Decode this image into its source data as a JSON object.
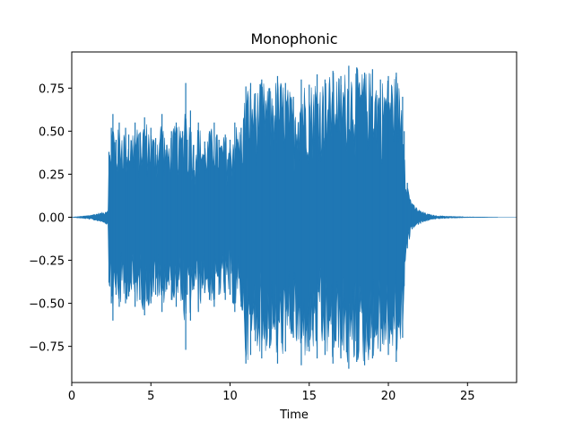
{
  "chart_data": {
    "type": "area",
    "title": "Monophonic",
    "xlabel": "Time",
    "ylabel": "",
    "xlim": [
      0,
      28.1
    ],
    "ylim": [
      -0.96,
      0.96
    ],
    "xticks": [
      0,
      5,
      10,
      15,
      20,
      25
    ],
    "xtick_labels": [
      "0",
      "5",
      "10",
      "15",
      "20",
      "25"
    ],
    "yticks": [
      -0.75,
      -0.5,
      -0.25,
      0.0,
      0.25,
      0.5,
      0.75
    ],
    "ytick_labels": [
      "−0.75",
      "−0.50",
      "−0.25",
      "0.00",
      "0.25",
      "0.50",
      "0.75"
    ],
    "grid": false,
    "legend": "none",
    "series": [
      {
        "color": "#1f77b4",
        "envelope": {
          "x": [
            0,
            0.5,
            1.0,
            1.5,
            2.0,
            2.3,
            2.35,
            2.5,
            2.6,
            2.8,
            3.0,
            3.4,
            3.6,
            4.0,
            4.3,
            4.6,
            5.0,
            5.3,
            5.7,
            6.0,
            6.3,
            6.6,
            7.0,
            7.2,
            7.3,
            7.5,
            7.7,
            8.0,
            8.4,
            8.7,
            9.0,
            9.3,
            9.7,
            10.0,
            10.3,
            10.7,
            11.0,
            11.3,
            11.6,
            12.0,
            12.5,
            13.0,
            13.5,
            14.0,
            14.5,
            15.0,
            15.5,
            16.0,
            16.5,
            17.0,
            17.5,
            18.0,
            18.5,
            19.0,
            19.5,
            20.0,
            20.5,
            20.9,
            21.0,
            21.2,
            21.5,
            22.0,
            22.5,
            23.0,
            24.0,
            25.0,
            26.0,
            27.0,
            28.1
          ],
          "upper": [
            0.0,
            0.005,
            0.01,
            0.02,
            0.03,
            0.05,
            0.38,
            0.52,
            0.6,
            0.45,
            0.55,
            0.52,
            0.48,
            0.55,
            0.49,
            0.58,
            0.52,
            0.46,
            0.6,
            0.42,
            0.5,
            0.55,
            0.5,
            0.78,
            0.45,
            0.62,
            0.42,
            0.55,
            0.44,
            0.5,
            0.55,
            0.45,
            0.48,
            0.45,
            0.55,
            0.52,
            0.76,
            0.78,
            0.72,
            0.8,
            0.75,
            0.82,
            0.78,
            0.7,
            0.8,
            0.77,
            0.83,
            0.8,
            0.85,
            0.82,
            0.88,
            0.87,
            0.84,
            0.86,
            0.8,
            0.82,
            0.84,
            0.7,
            0.5,
            0.2,
            0.08,
            0.04,
            0.02,
            0.01,
            0.005,
            0.002,
            0.001,
            0.0,
            0.0
          ],
          "lower": [
            0.0,
            -0.005,
            -0.01,
            -0.02,
            -0.03,
            -0.05,
            -0.38,
            -0.5,
            -0.6,
            -0.45,
            -0.52,
            -0.5,
            -0.46,
            -0.52,
            -0.48,
            -0.57,
            -0.5,
            -0.45,
            -0.55,
            -0.42,
            -0.48,
            -0.52,
            -0.48,
            -0.77,
            -0.45,
            -0.6,
            -0.42,
            -0.55,
            -0.44,
            -0.48,
            -0.52,
            -0.45,
            -0.48,
            -0.45,
            -0.55,
            -0.52,
            -0.85,
            -0.8,
            -0.72,
            -0.82,
            -0.76,
            -0.85,
            -0.78,
            -0.7,
            -0.86,
            -0.78,
            -0.82,
            -0.8,
            -0.85,
            -0.82,
            -0.88,
            -0.84,
            -0.86,
            -0.82,
            -0.78,
            -0.8,
            -0.84,
            -0.7,
            -0.4,
            -0.18,
            -0.07,
            -0.04,
            -0.02,
            -0.01,
            -0.005,
            -0.002,
            -0.001,
            0.0,
            0.0
          ]
        }
      }
    ]
  }
}
